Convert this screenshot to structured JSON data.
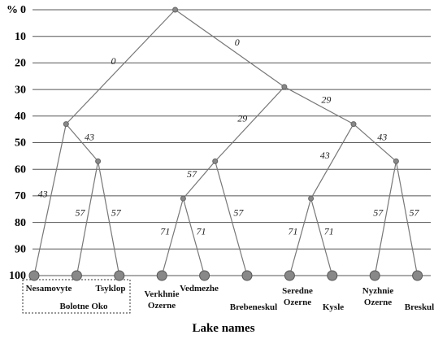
{
  "chart_data": {
    "type": "dendrogram",
    "y_unit": "%",
    "ylim": [
      0,
      100
    ],
    "yticks": [
      0,
      10,
      20,
      30,
      40,
      50,
      60,
      70,
      80,
      90,
      100
    ],
    "grid": true,
    "xlabel": "Lake names",
    "tree": {
      "level": 0,
      "children": [
        {
          "level": 43,
          "children": [
            {
              "name": "Nesamovyte",
              "level": 100
            },
            {
              "level": 57,
              "children": [
                {
                  "name": "Bolotne Oko",
                  "level": 100
                },
                {
                  "name": "Tsyklop",
                  "level": 100
                }
              ]
            }
          ]
        },
        {
          "level": 29,
          "children": [
            {
              "level": 57,
              "children": [
                {
                  "level": 71,
                  "children": [
                    {
                      "name": "Verkhnie\nOzerne",
                      "level": 100
                    },
                    {
                      "name": "Vedmezhe",
                      "level": 100
                    }
                  ]
                },
                {
                  "name": "Brebeneskul",
                  "level": 100
                }
              ]
            },
            {
              "level": 43,
              "children": [
                {
                  "level": 71,
                  "children": [
                    {
                      "name": "Seredne\nOzerne",
                      "level": 100
                    },
                    {
                      "name": "Kysle",
                      "level": 100
                    }
                  ]
                },
                {
                  "level": 57,
                  "children": [
                    {
                      "name": "Nyzhnie\nOzerne",
                      "level": 100
                    },
                    {
                      "name": "Breskul",
                      "level": 100
                    }
                  ]
                }
              ]
            }
          ]
        }
      ]
    }
  }
}
